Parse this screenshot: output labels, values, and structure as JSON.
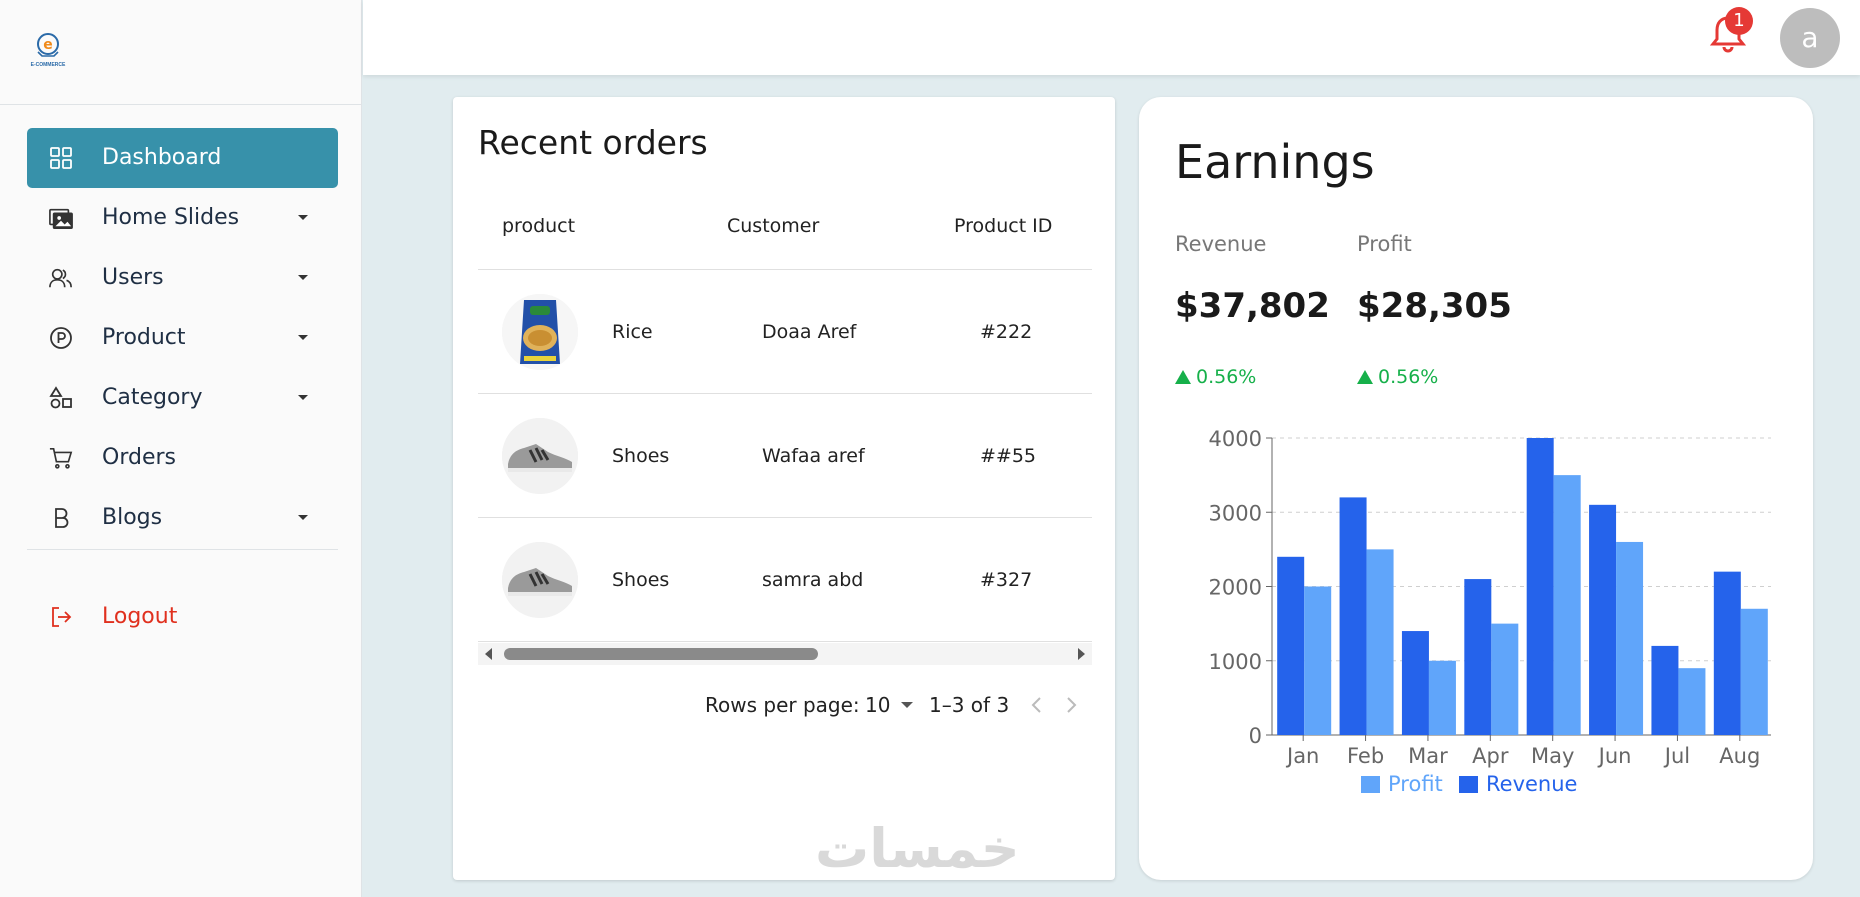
{
  "sidebar": {
    "logo_text": "E-COMMERCE",
    "items": [
      {
        "label": "Dashboard",
        "icon": "grid-icon",
        "active": true,
        "has_submenu": false
      },
      {
        "label": "Home Slides",
        "icon": "images-icon",
        "active": false,
        "has_submenu": true
      },
      {
        "label": "Users",
        "icon": "users-icon",
        "active": false,
        "has_submenu": true
      },
      {
        "label": "Product",
        "icon": "product-p-icon",
        "active": false,
        "has_submenu": true
      },
      {
        "label": "Category",
        "icon": "shapes-icon",
        "active": false,
        "has_submenu": true
      },
      {
        "label": "Orders",
        "icon": "cart-icon",
        "active": false,
        "has_submenu": false
      },
      {
        "label": "Blogs",
        "icon": "b-letter-icon",
        "active": false,
        "has_submenu": true
      }
    ],
    "logout_label": "Logout"
  },
  "header": {
    "notification_count": "1",
    "avatar_letter": "a"
  },
  "orders": {
    "title": "Recent orders",
    "columns": [
      "product",
      "Customer",
      "Product ID"
    ],
    "rows": [
      {
        "product": "Rice",
        "customer": "Doaa Aref",
        "product_id": "#222",
        "thumb": "rice"
      },
      {
        "product": "Shoes",
        "customer": "Wafaa aref",
        "product_id": "##55",
        "thumb": "shoe"
      },
      {
        "product": "Shoes",
        "customer": "samra abd",
        "product_id": "#327",
        "thumb": "shoe"
      }
    ],
    "pagination": {
      "rows_per_page_label": "Rows per page:",
      "rows_per_page": "10",
      "range": "1–3 of 3"
    },
    "watermark": "خمسات"
  },
  "earnings": {
    "title": "Earnings",
    "revenue_label": "Revenue",
    "revenue_value": "$37,802",
    "revenue_delta": "0.56%",
    "profit_label": "Profit",
    "profit_value": "$28,305",
    "profit_delta": "0.56%",
    "colors": {
      "revenue": "#2563eb",
      "profit": "#60a5fa",
      "delta": "#16b04a"
    }
  },
  "chart_data": {
    "type": "bar",
    "categories": [
      "Jan",
      "Feb",
      "Mar",
      "Apr",
      "May",
      "Jun",
      "Jul",
      "Aug"
    ],
    "series": [
      {
        "name": "Revenue",
        "values": [
          2400,
          3200,
          1400,
          2100,
          4000,
          3100,
          1200,
          2200
        ],
        "color": "#2563eb"
      },
      {
        "name": "Profit",
        "values": [
          2000,
          2500,
          1000,
          1500,
          3500,
          2600,
          900,
          1700
        ],
        "color": "#60a5fa"
      }
    ],
    "yticks": [
      0,
      1000,
      2000,
      3000,
      4000
    ],
    "ylim": [
      0,
      4000
    ],
    "grid": "horizontal dashed",
    "legend": [
      "Profit",
      "Revenue"
    ],
    "legend_position": "bottom"
  }
}
